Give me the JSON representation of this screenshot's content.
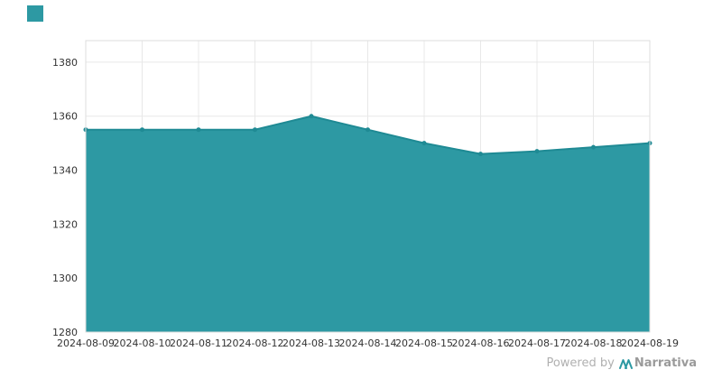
{
  "brand": {
    "logo_color": "#2d99a3"
  },
  "footer": {
    "powered_by": "Powered by",
    "brand": "Narrativa",
    "brand_color": "#9a9a9a",
    "icon_color": "#2d99a3"
  },
  "chart_data": {
    "type": "area",
    "title": "",
    "xlabel": "",
    "ylabel": "",
    "x": [
      "2024-08-09",
      "2024-08-10",
      "2024-08-11",
      "2024-08-12",
      "2024-08-13",
      "2024-08-14",
      "2024-08-15",
      "2024-08-16",
      "2024-08-17",
      "2024-08-18",
      "2024-08-19"
    ],
    "values": [
      1355,
      1355,
      1355,
      1355,
      1360,
      1355,
      1350,
      1346,
      1347,
      1348.5,
      1350
    ],
    "ylim": [
      1280,
      1388
    ],
    "yticks": [
      1280,
      1300,
      1320,
      1340,
      1360,
      1380
    ],
    "grid": true,
    "legend": "none",
    "fill_color": "#2d99a3",
    "line_color": "#1f8a94",
    "grid_color": "#e8e8e8",
    "border_color": "#dedede",
    "tick_color": "#333333"
  }
}
